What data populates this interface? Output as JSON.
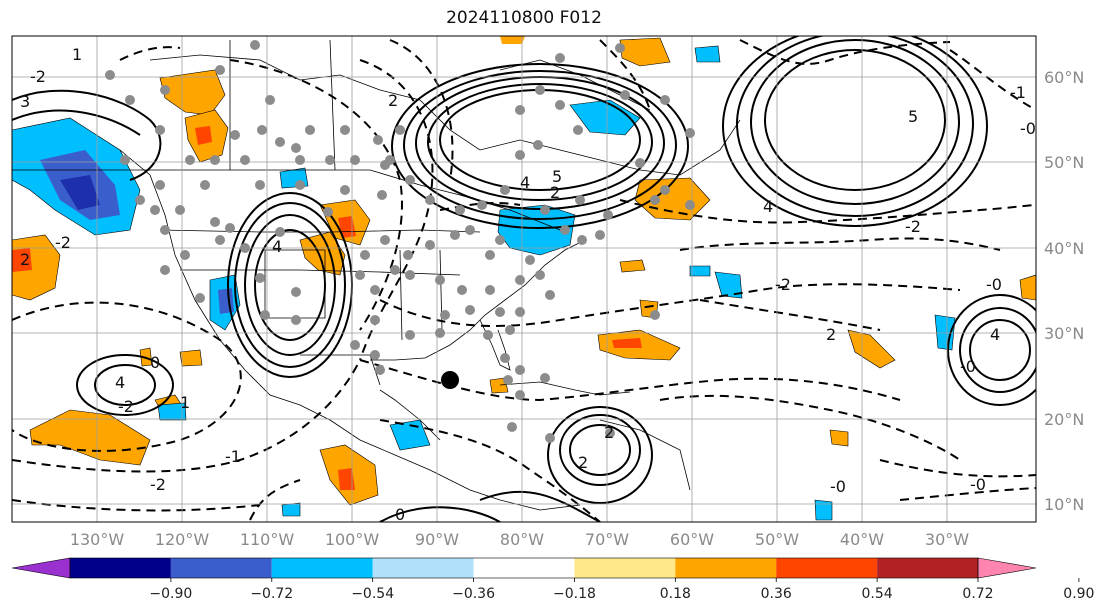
{
  "title": "2024110800 F012",
  "map": {
    "lon_labels": [
      "130°W",
      "120°W",
      "110°W",
      "100°W",
      "90°W",
      "80°W",
      "70°W",
      "60°W",
      "50°W",
      "40°W",
      "30°W"
    ],
    "lat_labels": [
      "60°N",
      "50°N",
      "40°N",
      "30°N",
      "20°N",
      "10°N"
    ],
    "contour_labels": [
      "-2",
      "3",
      "2",
      "1",
      "5",
      "4",
      "5",
      "2",
      "4",
      "4",
      "-0",
      "-1",
      "-0",
      "4",
      "-2",
      "2",
      "4",
      "-2",
      "2",
      "-2",
      "-2",
      "0",
      "2",
      "1",
      "2",
      "-1",
      "-2",
      "-0",
      "-0",
      "0",
      "-0"
    ],
    "marker": "storm-center-dot"
  },
  "colorbar": {
    "tick_labels": [
      "−0.90",
      "−0.72",
      "−0.54",
      "−0.36",
      "−0.18",
      "0.18",
      "0.36",
      "0.54",
      "0.72",
      "0.90"
    ],
    "colors": [
      "#9b30d0",
      "#00008b",
      "#3a5fcd",
      "#00bfff",
      "#b0e0fa",
      "#ffffff",
      "#ffe88a",
      "#ffa500",
      "#ff4500",
      "#b22222",
      "#ff85b0"
    ]
  }
}
